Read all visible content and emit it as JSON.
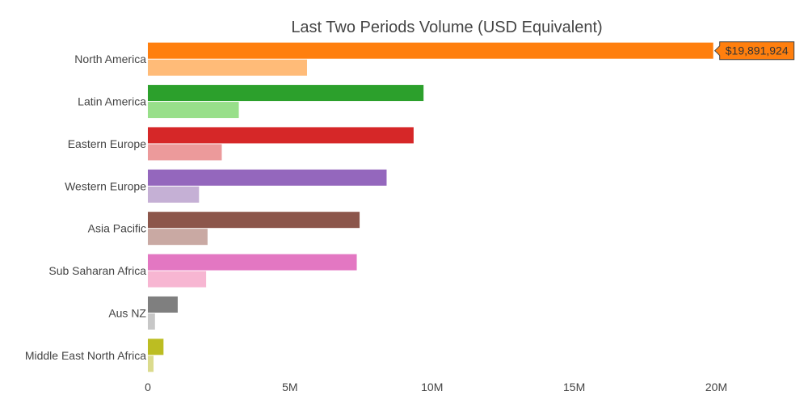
{
  "chart_data": {
    "type": "bar",
    "orientation": "horizontal",
    "title": "Last Two Periods Volume (USD Equivalent)",
    "xlabel": "",
    "ylabel": "",
    "xlim": [
      0,
      22800000
    ],
    "x_ticks": [
      0,
      5000000,
      10000000,
      15000000,
      20000000
    ],
    "x_tick_labels": [
      "0",
      "5M",
      "10M",
      "15M",
      "20M"
    ],
    "grid": false,
    "legend": "none",
    "categories": [
      "North America",
      "Latin America",
      "Eastern Europe",
      "Western Europe",
      "Asia Pacific",
      "Sub Saharan Africa",
      "Aus NZ",
      "Middle East North Africa"
    ],
    "series": [
      {
        "values": [
          19891924,
          9700000,
          9350000,
          8400000,
          7450000,
          7350000,
          1050000,
          550000
        ],
        "colors": [
          "#ff7f0e",
          "#2ca02c",
          "#d62728",
          "#9467bd",
          "#8c564b",
          "#e377c2",
          "#7f7f7f",
          "#bcbd22"
        ]
      },
      {
        "values": [
          5600000,
          3200000,
          2600000,
          1800000,
          2100000,
          2050000,
          250000,
          200000
        ],
        "colors": [
          "#ffbb78",
          "#98df8a",
          "#ec9a9b",
          "#c5b0d5",
          "#c9a9a3",
          "#f7b6d2",
          "#c7c7c7",
          "#dbdb8d"
        ]
      }
    ],
    "hover_label": {
      "text": "$19,891,924",
      "category": "North America",
      "series_index": 0,
      "value": 19891924,
      "color": "#ff7f0e"
    }
  }
}
